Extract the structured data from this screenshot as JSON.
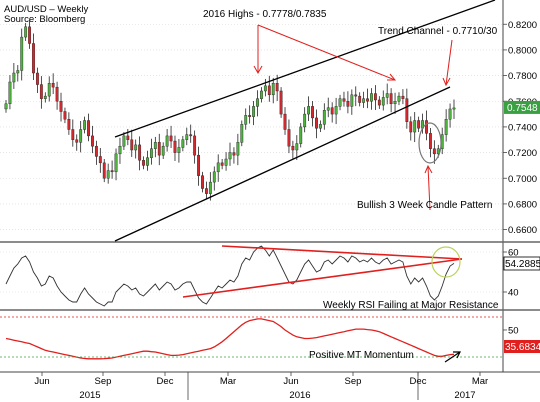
{
  "header": {
    "title": "AUD/USD – Weekly",
    "source": "Source: Bloomberg"
  },
  "annotations": {
    "highs": "2016 Highs - 0.7778/0.7835",
    "channel": "Trend Channel - 0.7710/30",
    "candle_pattern": "Bullish 3 Week Candle Pattern",
    "rsi": "Weekly RSI Failing at Major Resistance",
    "momentum": "Positive MT Momentum"
  },
  "colors": {
    "bull": "#4db33d",
    "bear": "#d4282f",
    "trend": "#000000",
    "rsi_trend": "#e0201e",
    "momentum": "#e0201e",
    "circle_rsi": "#b9d35a",
    "price_badge": "#3aa142",
    "rsi_badge": "#ffffff",
    "mom_badge": "#e0201e"
  },
  "chart_data": [
    {
      "type": "candlestick",
      "panel": "price",
      "ylim": [
        0.655,
        0.835
      ],
      "yticks": [
        "0.8200",
        "0.8000",
        "0.7800",
        "0.7600",
        "0.7400",
        "0.7200",
        "0.7000",
        "0.6800",
        "0.6600"
      ],
      "ytick_values": [
        0.82,
        0.8,
        0.78,
        0.76,
        0.74,
        0.72,
        0.7,
        0.68,
        0.66
      ],
      "last_value": "0.7548",
      "closes": [
        0.758,
        0.775,
        0.782,
        0.784,
        0.81,
        0.818,
        0.805,
        0.782,
        0.773,
        0.762,
        0.764,
        0.774,
        0.771,
        0.76,
        0.752,
        0.746,
        0.738,
        0.73,
        0.728,
        0.738,
        0.745,
        0.733,
        0.725,
        0.717,
        0.712,
        0.7,
        0.706,
        0.705,
        0.719,
        0.725,
        0.733,
        0.73,
        0.722,
        0.726,
        0.714,
        0.71,
        0.716,
        0.723,
        0.728,
        0.718,
        0.725,
        0.733,
        0.729,
        0.72,
        0.724,
        0.73,
        0.734,
        0.733,
        0.718,
        0.702,
        0.692,
        0.688,
        0.697,
        0.705,
        0.712,
        0.71,
        0.715,
        0.72,
        0.718,
        0.728,
        0.742,
        0.749,
        0.748,
        0.756,
        0.762,
        0.768,
        0.772,
        0.765,
        0.774,
        0.768,
        0.75,
        0.738,
        0.725,
        0.722,
        0.727,
        0.74,
        0.75,
        0.756,
        0.747,
        0.739,
        0.742,
        0.753,
        0.755,
        0.75,
        0.756,
        0.762,
        0.76,
        0.756,
        0.765,
        0.764,
        0.759,
        0.762,
        0.76,
        0.766,
        0.761,
        0.757,
        0.763,
        0.766,
        0.758,
        0.76,
        0.764,
        0.762,
        0.744,
        0.736,
        0.745,
        0.739,
        0.745,
        0.735,
        0.723,
        0.719,
        0.723,
        0.734,
        0.746,
        0.754,
        0.7548
      ]
    },
    {
      "type": "line",
      "panel": "rsi",
      "name": "Weekly RSI",
      "ylim": [
        33,
        64
      ],
      "yticks": [
        "60",
        "40"
      ],
      "ytick_values": [
        60,
        40
      ],
      "last_value": "54.2885",
      "values": [
        44,
        48,
        52,
        54,
        57,
        58,
        55,
        50,
        47,
        43,
        44,
        48,
        47,
        43,
        40,
        38,
        36,
        35,
        35,
        39,
        42,
        39,
        37,
        35,
        34,
        33,
        35,
        35,
        40,
        42,
        44,
        43,
        41,
        42,
        39,
        38,
        40,
        42,
        44,
        41,
        43,
        45,
        44,
        41,
        42,
        44,
        45,
        45,
        41,
        37,
        35,
        34,
        37,
        40,
        43,
        42,
        44,
        46,
        45,
        48,
        54,
        57,
        56,
        60,
        62,
        63,
        61,
        58,
        61,
        57,
        53,
        49,
        45,
        44,
        46,
        50,
        54,
        56,
        53,
        50,
        51,
        55,
        56,
        54,
        56,
        58,
        57,
        55,
        58,
        57,
        55,
        56,
        55,
        57,
        55,
        54,
        56,
        57,
        54,
        55,
        56,
        55,
        48,
        44,
        47,
        45,
        47,
        43,
        38,
        36,
        38,
        43,
        49,
        53,
        54.29
      ]
    },
    {
      "type": "line",
      "panel": "momentum",
      "ylim": [
        27,
        60
      ],
      "yticks": [
        "50"
      ],
      "ytick_values": [
        50
      ],
      "last_value": "35.6834",
      "values": [
        45,
        44.5,
        44,
        43.5,
        43,
        42.5,
        42,
        41,
        40,
        39,
        38,
        37.5,
        37,
        36.5,
        36,
        35.5,
        35,
        34.5,
        34,
        33.5,
        33.2,
        33,
        33,
        33,
        33,
        33.1,
        33.3,
        33.5,
        34,
        34.5,
        35,
        35.5,
        36,
        36.5,
        37,
        37.5,
        37.5,
        37.2,
        37,
        36.5,
        36,
        35.5,
        35,
        35,
        35.2,
        35.5,
        36,
        36.5,
        37,
        37.5,
        38,
        38.5,
        39,
        40,
        41.5,
        43,
        45,
        47,
        49,
        51,
        53,
        54.5,
        55.5,
        56,
        56.5,
        56.5,
        56,
        55.5,
        55,
        53.5,
        52,
        50,
        48.5,
        47,
        46,
        45.5,
        45,
        45,
        45.2,
        45.5,
        46,
        46.5,
        47,
        47.5,
        48,
        48.5,
        49,
        49.5,
        50,
        50.5,
        50.5,
        50.5,
        50.2,
        50,
        49.5,
        49,
        48,
        47,
        46,
        45,
        44,
        43,
        42,
        41,
        40,
        39,
        38,
        37,
        36,
        35,
        34.5,
        34.5,
        35,
        35.5,
        35.68
      ]
    }
  ],
  "x_axis": {
    "months": [
      "Jun",
      "Sep",
      "Dec",
      "Mar",
      "Jun",
      "Sep",
      "Dec",
      "Mar"
    ],
    "years": [
      "2015",
      "2016",
      "2017"
    ]
  }
}
